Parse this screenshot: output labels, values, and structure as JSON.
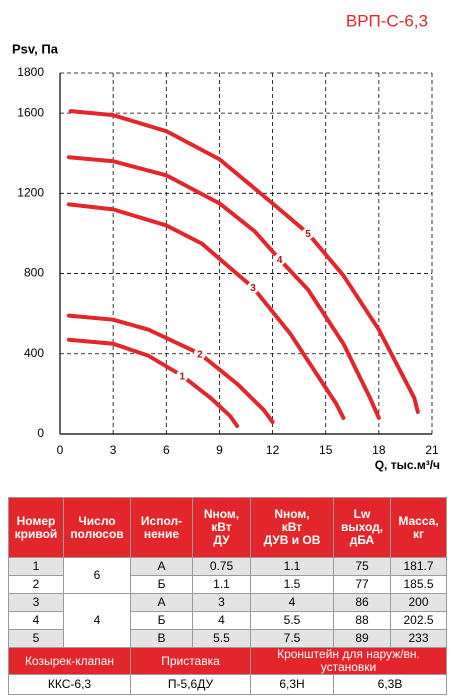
{
  "chart_data": {
    "type": "line",
    "title": "ВРП-С-6,3",
    "ylabel": "Psv, Па",
    "xlabel": "Q, тыс.м³/ч",
    "xlim": [
      0,
      21
    ],
    "xticks": [
      0,
      3,
      6,
      9,
      12,
      15,
      18,
      21
    ],
    "ylim": [
      0,
      1800
    ],
    "yticks": [
      0,
      400,
      800,
      1200,
      1600,
      1800
    ],
    "grid": true,
    "series": [
      {
        "name": "1",
        "color": "#e3262b",
        "x": [
          0.5,
          3,
          5,
          6.9,
          8.5,
          9.6,
          10
        ],
        "values": [
          470,
          450,
          390,
          290,
          180,
          90,
          40
        ]
      },
      {
        "name": "2",
        "color": "#e3262b",
        "x": [
          0.5,
          3,
          5,
          7.9,
          10,
          11.5,
          12
        ],
        "values": [
          590,
          570,
          520,
          400,
          250,
          120,
          60
        ]
      },
      {
        "name": "3",
        "color": "#e3262b",
        "x": [
          0.5,
          3,
          6,
          8,
          10.9,
          13,
          15,
          15.6,
          16
        ],
        "values": [
          1145,
          1120,
          1040,
          950,
          730,
          500,
          230,
          150,
          80
        ]
      },
      {
        "name": "4",
        "color": "#e3262b",
        "x": [
          0.5,
          3,
          6,
          9,
          11,
          12.4,
          14,
          16,
          17.5,
          18
        ],
        "values": [
          1380,
          1360,
          1290,
          1150,
          1010,
          870,
          720,
          450,
          180,
          80
        ]
      },
      {
        "name": "5",
        "color": "#e3262b",
        "x": [
          0.6,
          3,
          6,
          9,
          12,
          14,
          16,
          18,
          20,
          20.2
        ],
        "values": [
          1610,
          1590,
          1510,
          1370,
          1150,
          1000,
          790,
          520,
          180,
          110
        ]
      }
    ]
  },
  "table": {
    "headers": [
      "Номер\nкривой",
      "Число\nполюсов",
      "Испол-\nнение",
      "Nном,\nкВт\nДУ",
      "Nном,\nкВт\nДУВ и ОВ",
      "Lw\nвыход,\nдБА",
      "Масса,\nкг"
    ],
    "groups": [
      {
        "poles": "6",
        "rows": [
          [
            "1",
            "А",
            "0.75",
            "1.1",
            "75",
            "181.7"
          ],
          [
            "2",
            "Б",
            "1.1",
            "1.5",
            "77",
            "185.5"
          ]
        ]
      },
      {
        "poles": "4",
        "rows": [
          [
            "3",
            "А",
            "3",
            "4",
            "86",
            "200"
          ],
          [
            "4",
            "Б",
            "4",
            "5.5",
            "88",
            "202.5"
          ],
          [
            "5",
            "В",
            "5.5",
            "7.5",
            "89",
            "233"
          ]
        ]
      }
    ],
    "accessories": [
      "Козырек-клапан",
      "Приставка",
      "Кронштейн для наруж/вн. установки"
    ],
    "accessory_models": [
      "ККС-6,3",
      "П-5,6ДУ",
      "6,3Н",
      "6,3В"
    ]
  }
}
